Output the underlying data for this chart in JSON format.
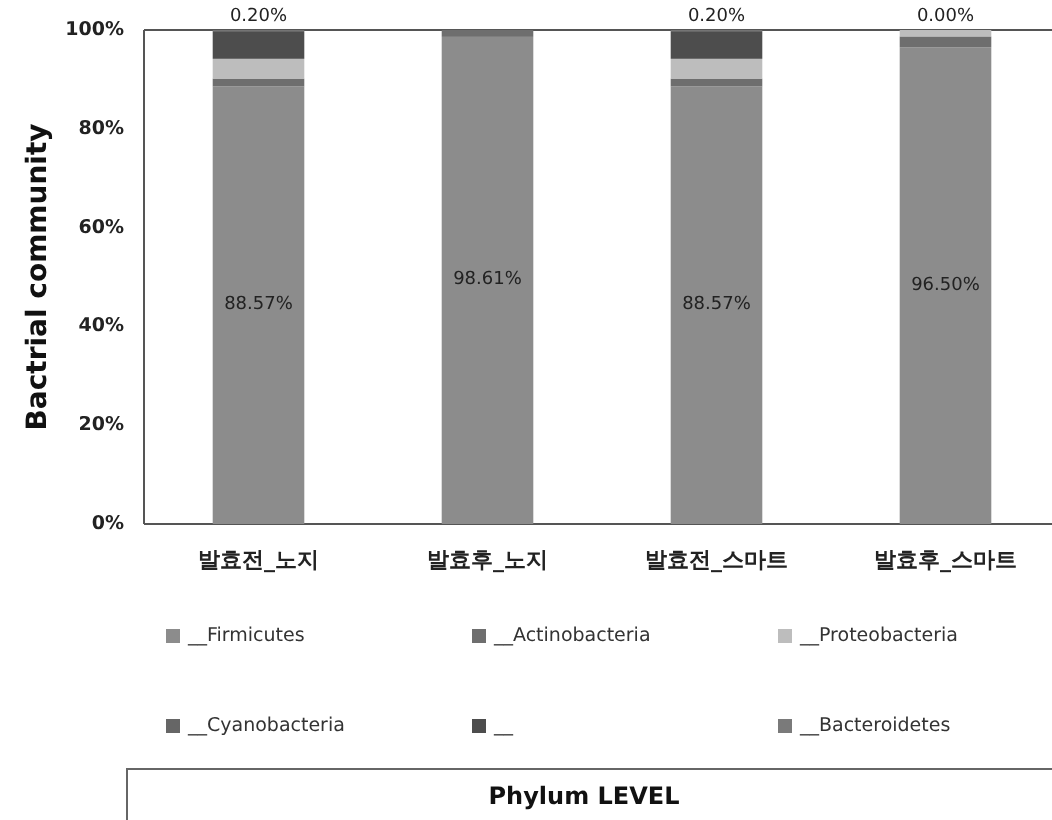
{
  "chart_data": {
    "type": "bar",
    "stacked": true,
    "categories": [
      "발효전_노지",
      "발효후_노지",
      "발효전_스마트",
      "발효후_스마트"
    ],
    "ylabel": "Bactrial community",
    "ylim": [
      0,
      100
    ],
    "yticks": [
      {
        "value": 0,
        "label": "0%"
      },
      {
        "value": 20,
        "label": "20%"
      },
      {
        "value": 40,
        "label": "40%"
      },
      {
        "value": 60,
        "label": "60%"
      },
      {
        "value": 80,
        "label": "80%"
      },
      {
        "value": 100,
        "label": "100%"
      }
    ],
    "legend": "bottom",
    "annotations": [
      "Phylum LEVEL"
    ],
    "series": [
      {
        "name": "__Firmicutes",
        "color": "#8c8c8c",
        "values": [
          88.57,
          98.61,
          88.57,
          96.5
        ],
        "value_labels": [
          "88.57%",
          "98.61%",
          "88.57%",
          "96.50%"
        ]
      },
      {
        "name": "__Actinobacteria",
        "color": "#6e6e6e",
        "values": [
          1.6,
          1.4,
          1.6,
          2.2
        ]
      },
      {
        "name": "__Proteobacteria",
        "color": "#bdbdbd",
        "values": [
          4.0,
          null,
          4.0,
          1.3
        ]
      },
      {
        "name": "__Cyanobacteria",
        "color": "#666666",
        "values": [
          null,
          null,
          null,
          null
        ]
      },
      {
        "name": "__",
        "color": "#4d4d4d",
        "values": [
          5.6,
          null,
          5.6,
          null
        ]
      },
      {
        "name": "__Bacteroidetes",
        "color": "#7a7a7a",
        "values": [
          0.2,
          null,
          0.2,
          0
        ],
        "value_labels": [
          "0.20%",
          null,
          "0.20%",
          "0.00%"
        ]
      }
    ]
  }
}
